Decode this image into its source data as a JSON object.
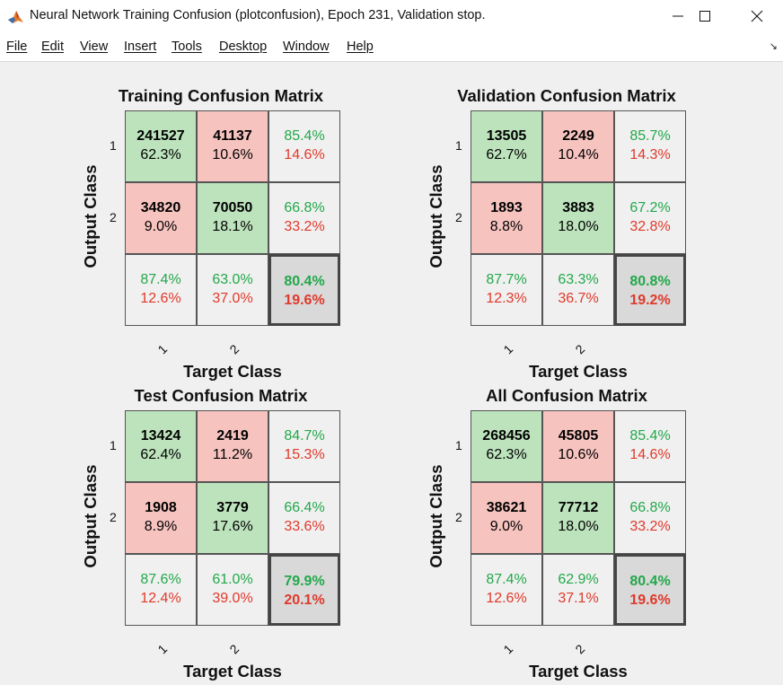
{
  "window": {
    "title": "Neural Network Training Confusion (plotconfusion), Epoch 231, Validation stop."
  },
  "colors": {
    "correct_cell": "#bde3bd",
    "error_cell": "#f6c3bf",
    "total_cell": "#d9d9d9",
    "correct_text": "#22a84a",
    "error_text": "#e0392b"
  },
  "menu": [
    {
      "label": "File"
    },
    {
      "label": "Edit"
    },
    {
      "label": "View"
    },
    {
      "label": "Insert"
    },
    {
      "label": "Tools"
    },
    {
      "label": "Desktop"
    },
    {
      "label": "Window"
    },
    {
      "label": "Help"
    }
  ],
  "panels": [
    {
      "title": "Training Confusion Matrix",
      "ylabel": "Output Class",
      "xlabel": "Target Class",
      "row_ticks": [
        "1",
        "2"
      ],
      "col_ticks": [
        "1",
        "2"
      ],
      "cells": [
        [
          {
            "count": "241527",
            "pct": "62.3%"
          },
          {
            "count": "41137",
            "pct": "10.6%"
          },
          {
            "good": "85.4%",
            "bad": "14.6%"
          }
        ],
        [
          {
            "count": "34820",
            "pct": "9.0%"
          },
          {
            "count": "70050",
            "pct": "18.1%"
          },
          {
            "good": "66.8%",
            "bad": "33.2%"
          }
        ],
        [
          {
            "good": "87.4%",
            "bad": "12.6%"
          },
          {
            "good": "63.0%",
            "bad": "37.0%"
          },
          {
            "good": "80.4%",
            "bad": "19.6%"
          }
        ]
      ]
    },
    {
      "title": "Validation Confusion Matrix",
      "ylabel": "Output Class",
      "xlabel": "Target Class",
      "row_ticks": [
        "1",
        "2"
      ],
      "col_ticks": [
        "1",
        "2"
      ],
      "cells": [
        [
          {
            "count": "13505",
            "pct": "62.7%"
          },
          {
            "count": "2249",
            "pct": "10.4%"
          },
          {
            "good": "85.7%",
            "bad": "14.3%"
          }
        ],
        [
          {
            "count": "1893",
            "pct": "8.8%"
          },
          {
            "count": "3883",
            "pct": "18.0%"
          },
          {
            "good": "67.2%",
            "bad": "32.8%"
          }
        ],
        [
          {
            "good": "87.7%",
            "bad": "12.3%"
          },
          {
            "good": "63.3%",
            "bad": "36.7%"
          },
          {
            "good": "80.8%",
            "bad": "19.2%"
          }
        ]
      ]
    },
    {
      "title": "Test Confusion Matrix",
      "ylabel": "Output Class",
      "xlabel": "Target Class",
      "row_ticks": [
        "1",
        "2"
      ],
      "col_ticks": [
        "1",
        "2"
      ],
      "cells": [
        [
          {
            "count": "13424",
            "pct": "62.4%"
          },
          {
            "count": "2419",
            "pct": "11.2%"
          },
          {
            "good": "84.7%",
            "bad": "15.3%"
          }
        ],
        [
          {
            "count": "1908",
            "pct": "8.9%"
          },
          {
            "count": "3779",
            "pct": "17.6%"
          },
          {
            "good": "66.4%",
            "bad": "33.6%"
          }
        ],
        [
          {
            "good": "87.6%",
            "bad": "12.4%"
          },
          {
            "good": "61.0%",
            "bad": "39.0%"
          },
          {
            "good": "79.9%",
            "bad": "20.1%"
          }
        ]
      ]
    },
    {
      "title": "All Confusion Matrix",
      "ylabel": "Output Class",
      "xlabel": "Target Class",
      "row_ticks": [
        "1",
        "2"
      ],
      "col_ticks": [
        "1",
        "2"
      ],
      "cells": [
        [
          {
            "count": "268456",
            "pct": "62.3%"
          },
          {
            "count": "45805",
            "pct": "10.6%"
          },
          {
            "good": "85.4%",
            "bad": "14.6%"
          }
        ],
        [
          {
            "count": "38621",
            "pct": "9.0%"
          },
          {
            "count": "77712",
            "pct": "18.0%"
          },
          {
            "good": "66.8%",
            "bad": "33.2%"
          }
        ],
        [
          {
            "good": "87.4%",
            "bad": "12.6%"
          },
          {
            "good": "62.9%",
            "bad": "37.1%"
          },
          {
            "good": "80.4%",
            "bad": "19.6%"
          }
        ]
      ]
    }
  ]
}
